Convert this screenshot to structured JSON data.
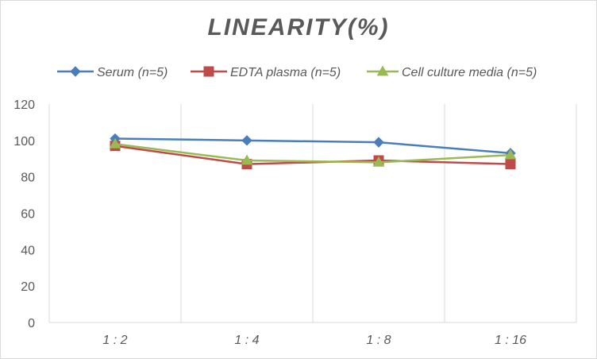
{
  "chart_data": {
    "type": "line",
    "title": "LINEARITY(%)",
    "xlabel": "",
    "ylabel": "",
    "categories": [
      "1:2",
      "1:4",
      "1:8",
      "1:16"
    ],
    "ylim": [
      0,
      120
    ],
    "yticks": [
      0,
      20,
      40,
      60,
      80,
      100,
      120
    ],
    "grid": "vertical",
    "legend_position": "top",
    "series": [
      {
        "name": "Serum (n=5)",
        "values": [
          101,
          100,
          99,
          93
        ],
        "color": "#4a7ebb",
        "marker": "diamond"
      },
      {
        "name": "EDTA plasma (n=5)",
        "values": [
          97,
          87,
          89,
          87
        ],
        "color": "#be4b48",
        "marker": "square"
      },
      {
        "name": "Cell culture media (n=5)",
        "values": [
          98,
          89,
          88,
          92
        ],
        "color": "#98b954",
        "marker": "triangle"
      }
    ]
  }
}
